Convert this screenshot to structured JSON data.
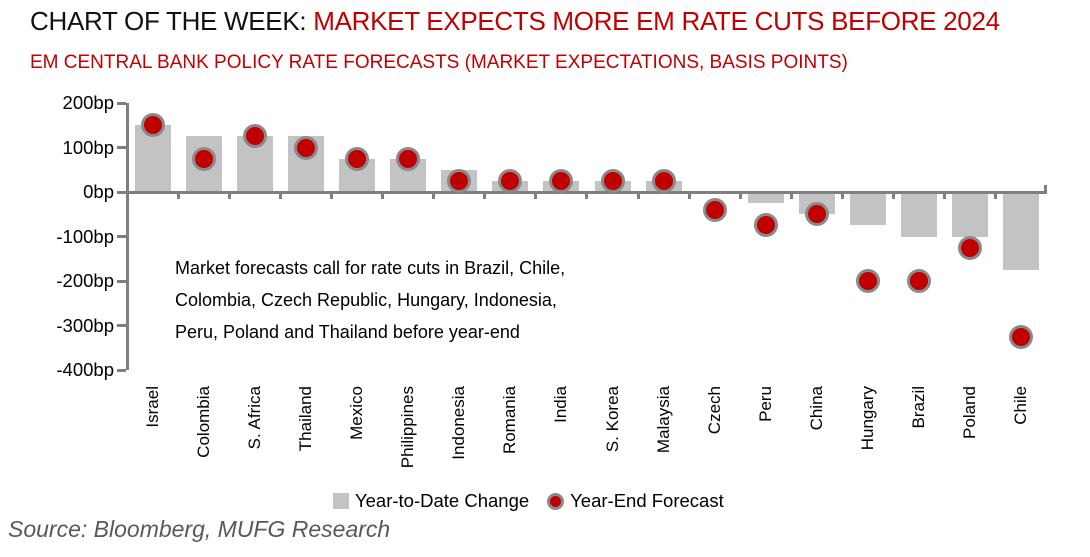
{
  "header": {
    "title_black": "CHART OF THE WEEK: ",
    "title_red": "MARKET EXPECTS MORE EM RATE CUTS BEFORE 2024",
    "subtitle": "EM CENTRAL BANK POLICY RATE FORECASTS (MARKET EXPECTATIONS, BASIS POINTS)"
  },
  "chart_data": {
    "type": "bar",
    "title": "EM CENTRAL BANK POLICY RATE FORECASTS (MARKET EXPECTATIONS, BASIS POINTS)",
    "categories": [
      "Israel",
      "Colombia",
      "S. Africa",
      "Thailand",
      "Mexico",
      "Philippines",
      "Indonesia",
      "Romania",
      "India",
      "S. Korea",
      "Malaysia",
      "Czech",
      "Peru",
      "China",
      "Hungary",
      "Brazil",
      "Poland",
      "Chile"
    ],
    "series": [
      {
        "name": "Year-to-Date Change",
        "type": "bar",
        "color": "#C3C3C3",
        "values": [
          150,
          125,
          125,
          125,
          75,
          75,
          50,
          25,
          25,
          25,
          25,
          0,
          -25,
          -50,
          -75,
          -100,
          -100,
          -175
        ]
      },
      {
        "name": "Year-End Forecast",
        "type": "scatter",
        "color": "#C00000",
        "ring_color": "#8A8A8A",
        "values": [
          150,
          75,
          125,
          100,
          75,
          75,
          25,
          25,
          25,
          25,
          25,
          -40,
          -75,
          -50,
          -200,
          -200,
          -125,
          -325
        ]
      }
    ],
    "xlabel": "",
    "ylabel": "",
    "ylim": [
      -400,
      200
    ],
    "ytick_step": 100,
    "ytick_suffix": "bp",
    "grid": false,
    "legend_position": "bottom"
  },
  "annotation": {
    "lines": [
      "Market forecasts call for rate cuts in Brazil, Chile,",
      "Colombia, Czech Republic, Hungary, Indonesia,",
      "Peru, Poland and Thailand before year-end"
    ]
  },
  "legend": [
    {
      "label": "Year-to-Date Change",
      "marker": "square"
    },
    {
      "label": "Year-End Forecast",
      "marker": "circle"
    }
  ],
  "source": "Source: Bloomberg, MUFG Research",
  "colors": {
    "accent_red": "#C00000",
    "bar_gray": "#C3C3C3",
    "axis_gray": "#7F7F7F",
    "marker_ring_gray": "#8A8A8A",
    "source_gray": "#595959"
  }
}
